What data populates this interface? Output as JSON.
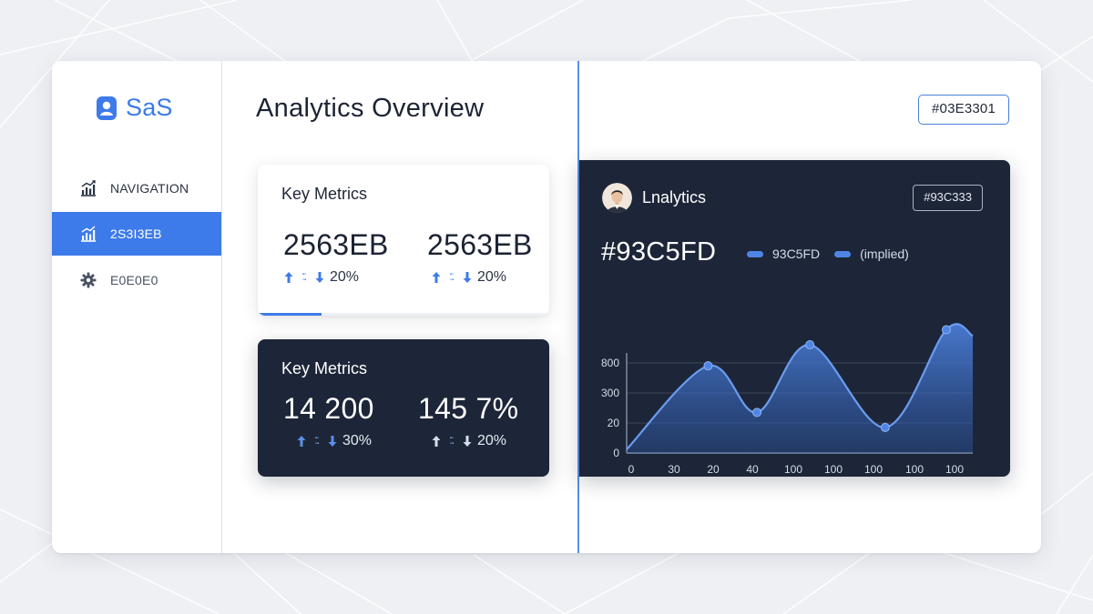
{
  "sidebar": {
    "brand": "SaS",
    "items": [
      {
        "label": "NAVIGATION",
        "icon": "chart-icon",
        "active": false
      },
      {
        "label": "2S3I3EB",
        "icon": "chart-icon",
        "active": true
      },
      {
        "label": "E0E0E0",
        "icon": "gear-icon",
        "active": false
      }
    ]
  },
  "main": {
    "title": "Analytics Overview",
    "light_card": {
      "title": "Key Metrics",
      "metrics": [
        {
          "value": "2563EB",
          "change": "20%"
        },
        {
          "value": "2563EB",
          "change": "20%"
        }
      ],
      "progress": 0.22
    },
    "dark_card": {
      "title": "Key Metrics",
      "metrics": [
        {
          "value": "14 200",
          "change": "30%"
        },
        {
          "value": "145 7%",
          "change": "20%"
        }
      ]
    }
  },
  "right": {
    "tag": "#03E3301",
    "panel": {
      "title": "Lnalytics",
      "badge": "#93C333",
      "big_value": "#93C5FD",
      "legend": [
        "93C5FD",
        "(implied)"
      ]
    }
  },
  "colors": {
    "accent": "#3d7bea",
    "dark_panel": "#1d2638",
    "page_bg": "#eef0f4"
  },
  "chart_data": {
    "type": "area",
    "x_tick_labels": [
      "0",
      "30",
      "20",
      "40",
      "100",
      "100",
      "100",
      "100",
      "100"
    ],
    "y_tick_labels": [
      "0",
      "20",
      "300",
      "800"
    ],
    "series": [
      {
        "name": "93C5FD",
        "points": [
          {
            "x": 0,
            "y": 0.12
          },
          {
            "x": 2.0,
            "y": 2.9
          },
          {
            "x": 3.2,
            "y": 1.35
          },
          {
            "x": 4.5,
            "y": 3.6
          },
          {
            "x": 6.35,
            "y": 0.85
          },
          {
            "x": 7.85,
            "y": 4.1
          }
        ],
        "end": {
          "x": 8.5,
          "y": 3.9
        }
      }
    ],
    "grid": true,
    "legend_placement": "top"
  }
}
